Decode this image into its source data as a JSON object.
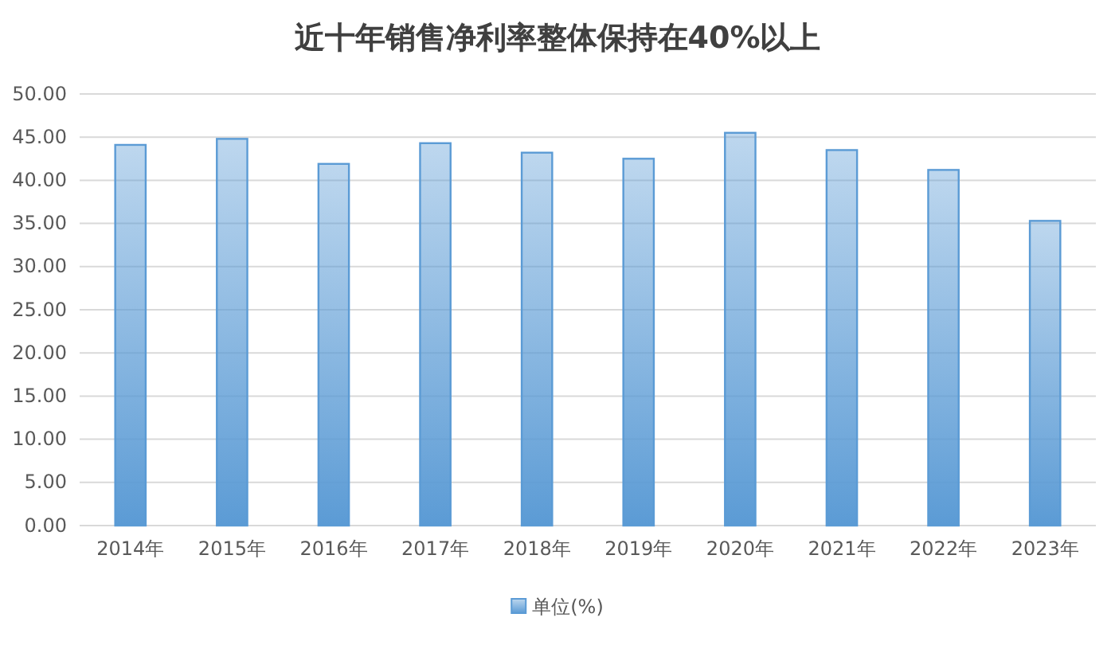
{
  "chart_data": {
    "type": "bar",
    "title": "近十年销售净利率整体保持在40%以上",
    "categories": [
      "2014年",
      "2015年",
      "2016年",
      "2017年",
      "2018年",
      "2019年",
      "2020年",
      "2021年",
      "2022年",
      "2023年"
    ],
    "series": [
      {
        "name": "单位(%)",
        "color": "#5b9bd5",
        "values": [
          44.1,
          44.8,
          41.9,
          44.3,
          43.2,
          42.5,
          45.5,
          43.5,
          41.2,
          35.3
        ]
      }
    ],
    "ylim": [
      0,
      50
    ],
    "yticks": [
      {
        "value": 0,
        "label": "0.00"
      },
      {
        "value": 5,
        "label": "5.00"
      },
      {
        "value": 10,
        "label": "10.00"
      },
      {
        "value": 15,
        "label": "15.00"
      },
      {
        "value": 20,
        "label": "20.00"
      },
      {
        "value": 25,
        "label": "25.00"
      },
      {
        "value": 30,
        "label": "30.00"
      },
      {
        "value": 35,
        "label": "35.00"
      },
      {
        "value": 40,
        "label": "40.00"
      },
      {
        "value": 45,
        "label": "45.00"
      },
      {
        "value": 50,
        "label": "50.00"
      }
    ],
    "grid": "y",
    "legend": "bottom"
  }
}
